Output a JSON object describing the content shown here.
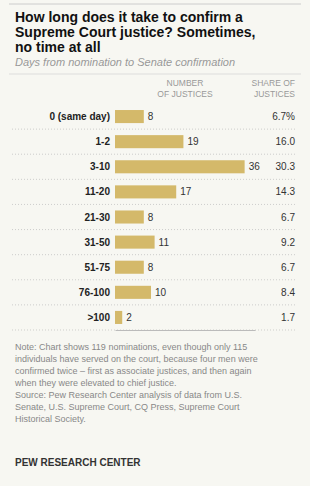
{
  "chart_data": {
    "type": "bar",
    "orientation": "horizontal",
    "title": "How long does it take to confirm a\nSupreme Court justice? Sometimes,\nno time at all",
    "subtitle": "Days from nomination to Senate confirmation",
    "column_headers": [
      "NUMBER\nOF JUSTICES",
      "SHARE OF\nJUSTICES"
    ],
    "categories": [
      "0 (same day)",
      "1-2",
      "3-10",
      "11-20",
      "21-30",
      "31-50",
      "51-75",
      "76-100",
      ">100"
    ],
    "values": [
      8,
      19,
      36,
      17,
      8,
      11,
      8,
      10,
      2
    ],
    "shares": [
      6.7,
      16.0,
      30.3,
      14.3,
      6.7,
      9.2,
      6.7,
      8.4,
      1.7
    ],
    "share_labels": [
      "6.7%",
      "16.0",
      "30.3",
      "14.3",
      "6.7",
      "9.2",
      "6.7",
      "8.4",
      "1.7"
    ],
    "color": "#d4b96a",
    "xlim": [
      0,
      38.88
    ],
    "data_labels": true,
    "tick_labels": false,
    "note": "Note: Chart shows 119 nominations, even though only 115\nindividuals have served on the court, because four men were\nconfirmed twice – first as associate justices, and then again\nwhen they were elevated to chief justice.\nSource: Pew Research Center analysis of data from U.S.\nSenate, U.S. Supreme Court, CQ Press, Supreme Court\nHistorical Society.",
    "brand": "PEW RESEARCH CENTER"
  }
}
